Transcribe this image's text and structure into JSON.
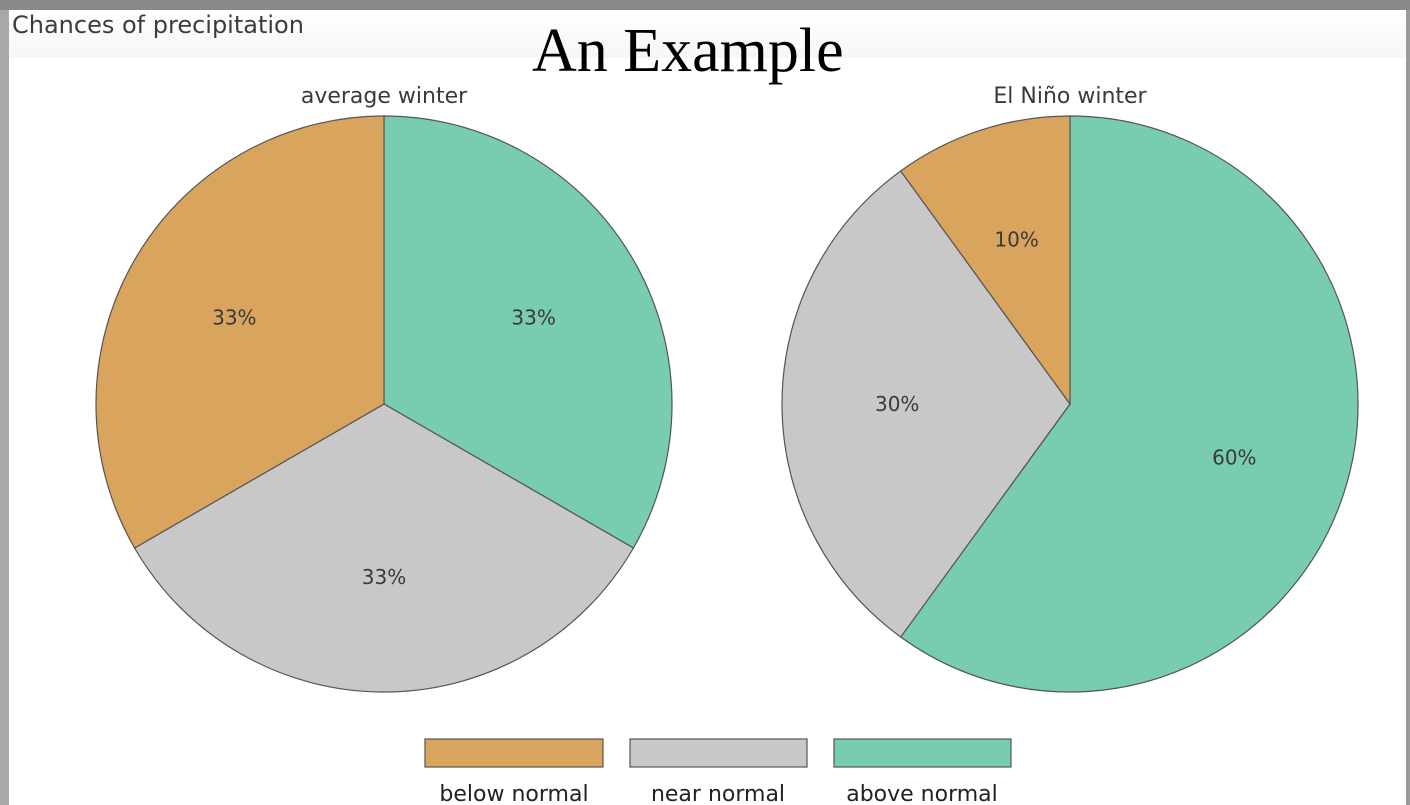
{
  "header": {
    "chart_label": "Chances of precipitation",
    "slide_title": "An Example"
  },
  "chart_data": [
    {
      "type": "pie",
      "title": "average winter",
      "categories": [
        "below normal",
        "near normal",
        "above normal"
      ],
      "values": [
        33,
        33,
        33
      ],
      "labels": [
        "33%",
        "33%",
        "33%"
      ]
    },
    {
      "type": "pie",
      "title": "El Niño winter",
      "categories": [
        "below normal",
        "near normal",
        "above normal"
      ],
      "values": [
        10,
        30,
        60
      ],
      "labels": [
        "10%",
        "30%",
        "60%"
      ]
    }
  ],
  "legend": {
    "items": [
      {
        "label": "below normal",
        "color": "#d9a55e"
      },
      {
        "label": "near normal",
        "color": "#c8c8c8"
      },
      {
        "label": "above normal",
        "color": "#78ccb0"
      }
    ]
  },
  "colors": {
    "below_normal": "#d9a55e",
    "near_normal": "#c8c8c8",
    "above_normal": "#78ccb0",
    "slice_border": "#555555"
  }
}
